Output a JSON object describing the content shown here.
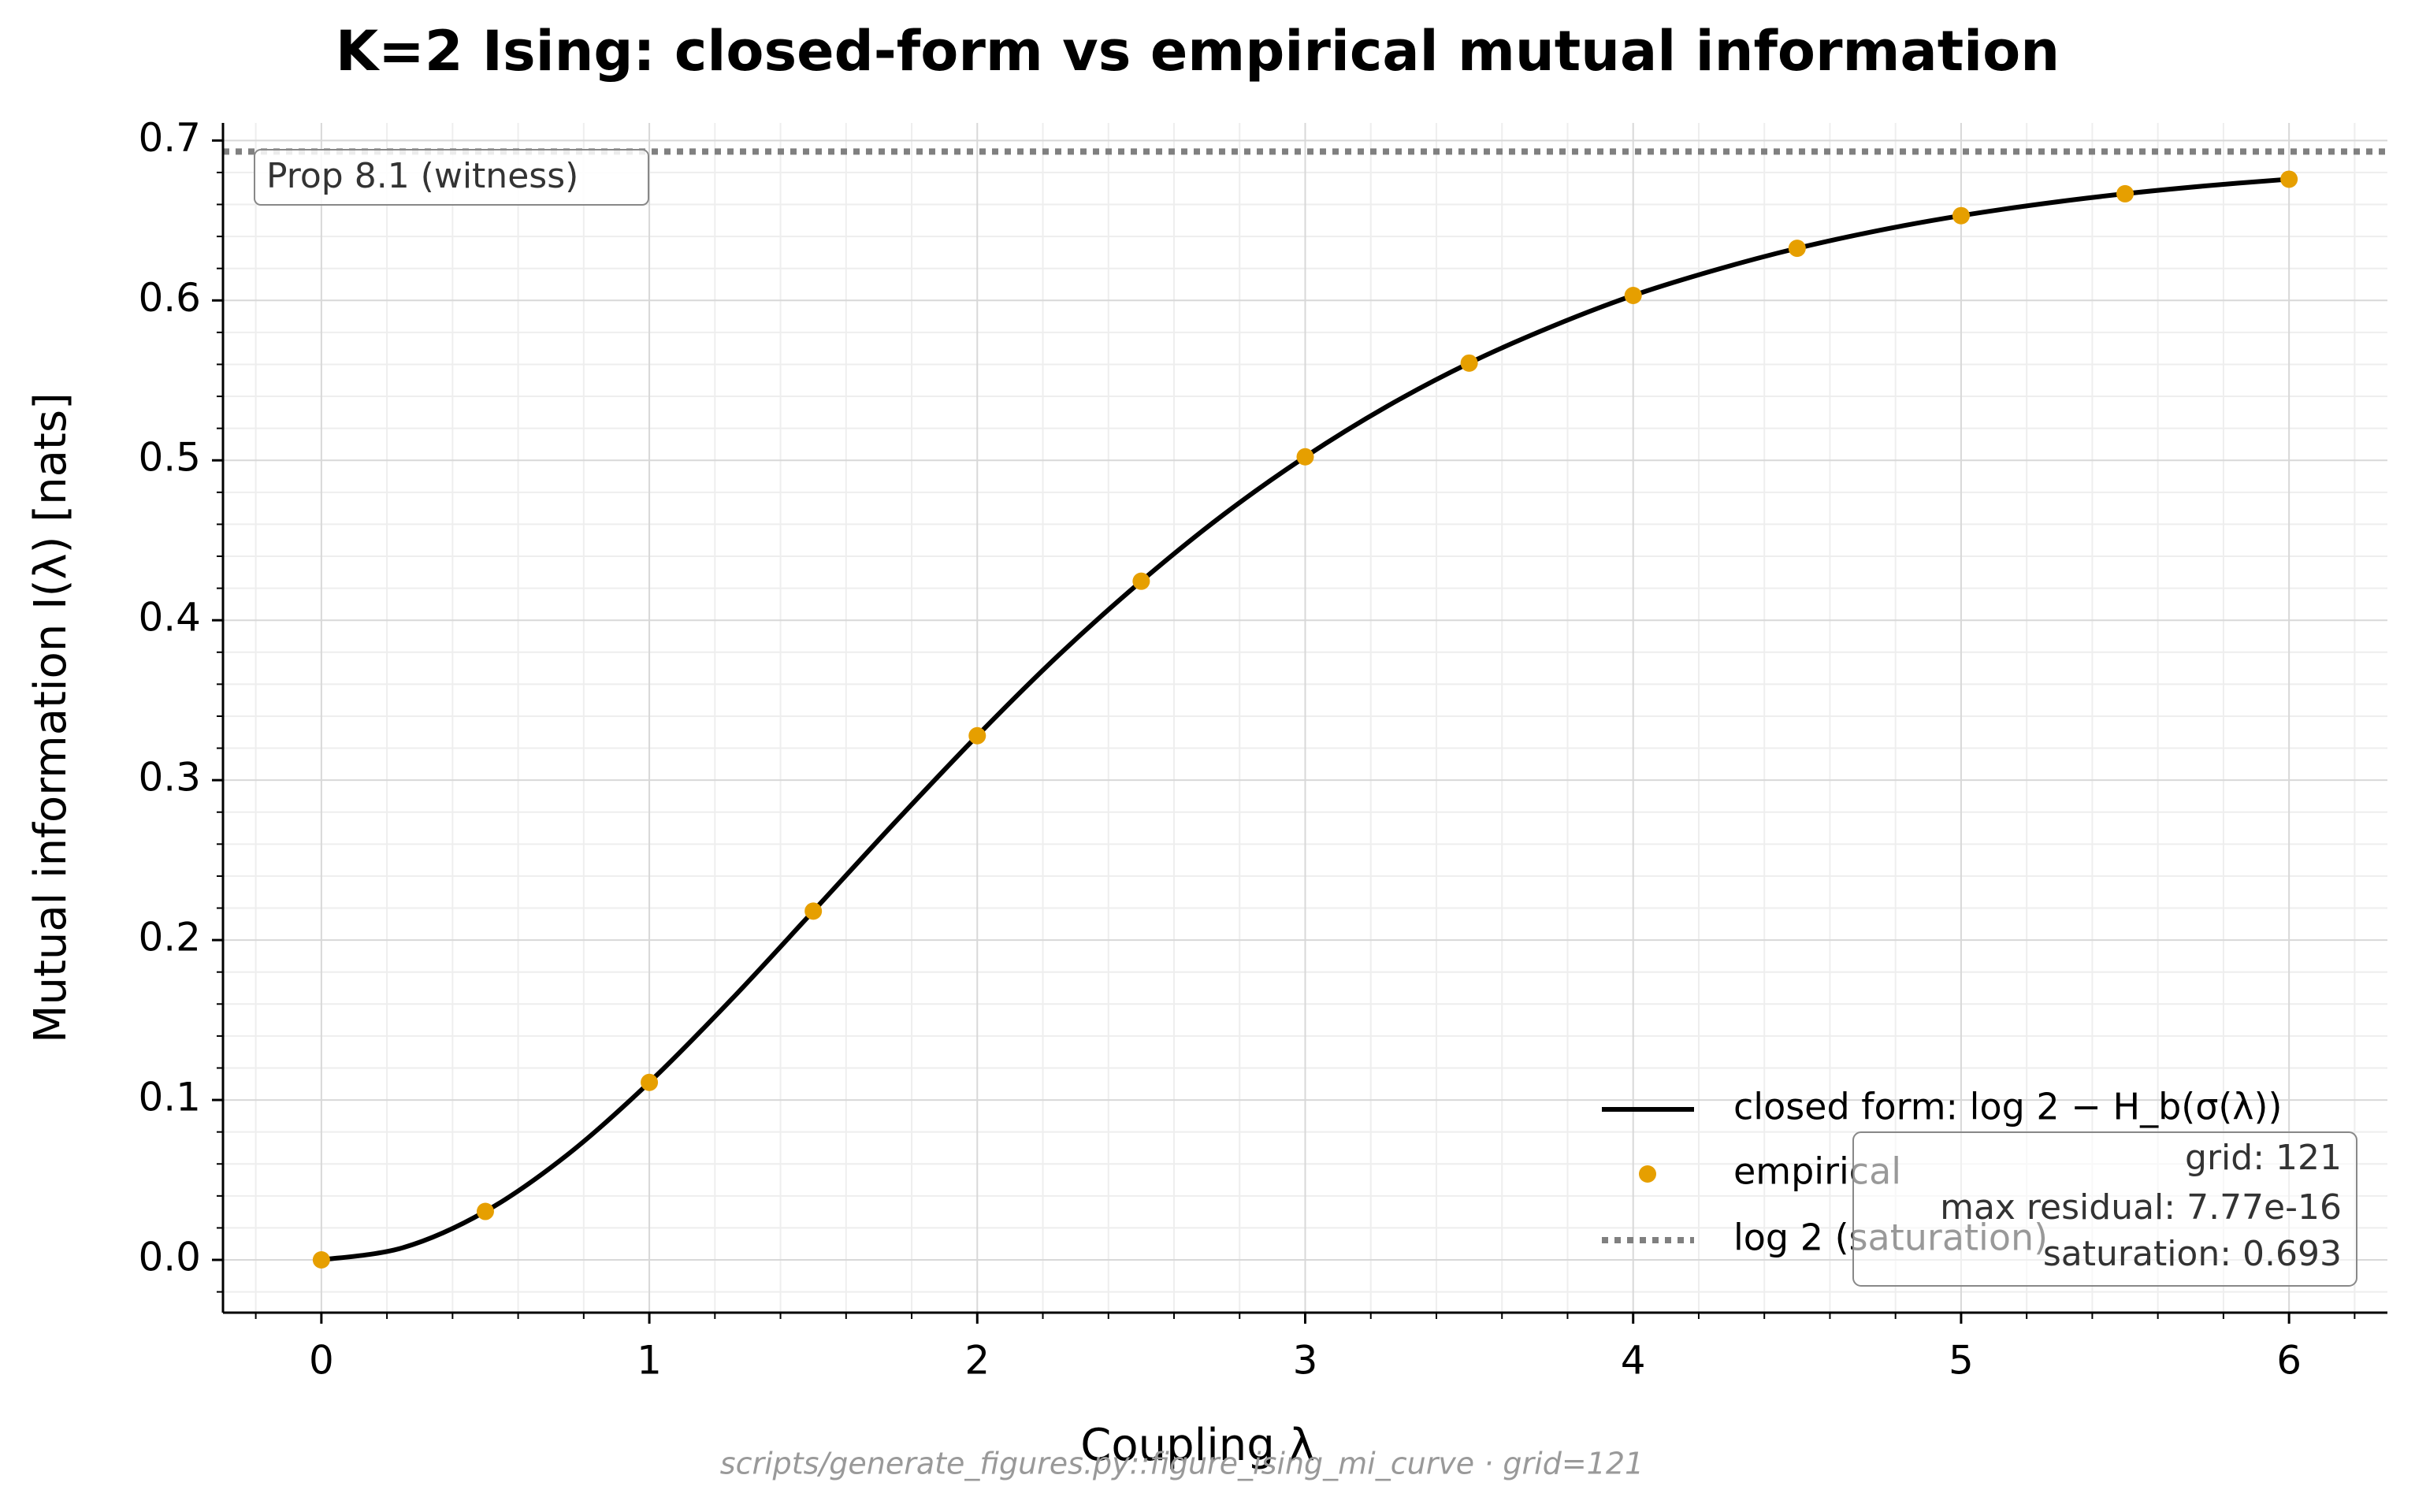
{
  "chart_data": {
    "type": "line",
    "title": "K=2 Ising: closed-form vs empirical mutual information",
    "x_label": "Coupling λ",
    "y_label": "Mutual information I(λ)  [nats]",
    "xlim": [
      -0.3,
      6.3
    ],
    "ylim": [
      -0.033,
      0.711
    ],
    "xticks": [
      0,
      1,
      2,
      3,
      4,
      5,
      6
    ],
    "yticks": [
      {
        "value": 0,
        "label": "0.0"
      },
      0.1,
      0.2,
      0.3,
      0.4,
      0.5,
      0.6,
      0.7
    ],
    "xminorticks": [
      -0.2,
      0.2,
      0.4,
      0.6,
      0.8,
      1.2,
      1.4,
      1.6,
      1.8,
      2.2,
      2.4,
      2.6,
      2.8,
      3.2,
      3.4,
      3.6,
      3.8,
      4.2,
      4.4,
      4.6,
      4.8,
      5.2,
      5.4,
      5.6,
      5.8,
      6.2
    ],
    "yminorticks": [
      -0.02,
      0.02,
      0.04,
      0.06,
      0.08,
      0.12,
      0.14,
      0.16,
      0.18,
      0.22,
      0.24,
      0.26,
      0.28,
      0.32,
      0.34,
      0.36,
      0.38,
      0.42,
      0.44,
      0.46,
      0.48,
      0.52,
      0.54,
      0.56,
      0.58,
      0.62,
      0.64,
      0.66,
      0.68
    ],
    "grid": true,
    "legend_position": "lower right",
    "series": [
      {
        "name": "closed form: log 2 − H_b(σ(λ))",
        "color": "#000000",
        "style": "line",
        "x": [
          0,
          0.25,
          0.5,
          0.75,
          1,
          1.25,
          1.5,
          1.75,
          2,
          2.25,
          2.5,
          2.75,
          3,
          3.25,
          3.5,
          3.75,
          4,
          4.25,
          4.5,
          4.75,
          5,
          5.25,
          5.5,
          5.75,
          6
        ],
        "values": [
          0,
          0.0077,
          0.0303,
          0.0657,
          0.111,
          0.1628,
          0.2181,
          0.2738,
          0.3278,
          0.3785,
          0.4244,
          0.4659,
          0.5022,
          0.5338,
          0.5608,
          0.5835,
          0.6031,
          0.619,
          0.6326,
          0.6438,
          0.653,
          0.6605,
          0.6667,
          0.6717,
          0.6758
        ]
      },
      {
        "name": "empirical",
        "color": "#e69f00",
        "style": "marker",
        "x": [
          0,
          0.5,
          1,
          1.5,
          2,
          2.5,
          3,
          3.5,
          4,
          4.5,
          5,
          5.5,
          6
        ],
        "values": [
          0,
          0.0303,
          0.111,
          0.2181,
          0.3278,
          0.4244,
          0.5022,
          0.5608,
          0.6031,
          0.6326,
          0.653,
          0.6667,
          0.6758
        ]
      },
      {
        "name": "log 2 (saturation)",
        "color": "#808080",
        "style": "hline",
        "values": [
          0.6931
        ]
      }
    ],
    "annotation": "Prop 8.1 (witness)",
    "stats": [
      "grid: 121",
      "max residual: 7.77e-16",
      "saturation: 0.693"
    ],
    "footer": "scripts/generate_figures.py::figure_ising_mi_curve  ·  grid=121"
  }
}
